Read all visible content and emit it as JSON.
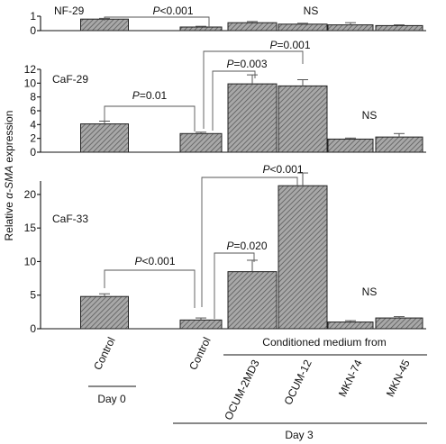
{
  "chart_data": {
    "type": "bar",
    "ylabel_parts": [
      "Relative ",
      "α-SMA",
      " expression"
    ],
    "panels": [
      {
        "title": "NF-29",
        "ylim": [
          0,
          1
        ],
        "yticks": [
          "0",
          "1"
        ],
        "series": [
          {
            "values": [
              0.8,
              0.25,
              0.55,
              0.45,
              0.4,
              0.35
            ],
            "errors": [
              0.05,
              0.05,
              0.08,
              0.06,
              0.15,
              0.05
            ]
          }
        ],
        "annotations": [
          {
            "text": "P<0.001",
            "type": "sig"
          },
          {
            "text": "NS",
            "type": "ns"
          }
        ]
      },
      {
        "title": "CaF-29",
        "ylim": [
          0,
          12
        ],
        "yticks": [
          "0",
          "2",
          "4",
          "6",
          "8",
          "10",
          "12"
        ],
        "series": [
          {
            "values": [
              4.1,
              2.7,
              9.9,
              9.6,
              1.9,
              2.2
            ],
            "errors": [
              0.4,
              0.2,
              1.3,
              0.9,
              0.15,
              0.5
            ]
          }
        ],
        "annotations": [
          {
            "text": "P=0.01",
            "type": "sig"
          },
          {
            "text": "P=0.003",
            "type": "sig"
          },
          {
            "text": "P=0.001",
            "type": "sig"
          },
          {
            "text": "NS",
            "type": "ns"
          }
        ]
      },
      {
        "title": "CaF-33",
        "ylim": [
          0,
          22
        ],
        "yticks": [
          "0",
          "5",
          "10",
          "15",
          "20"
        ],
        "series": [
          {
            "values": [
              4.8,
              1.3,
              8.5,
              21.3,
              1.0,
              1.6
            ],
            "errors": [
              0.4,
              0.3,
              1.7,
              1.9,
              0.2,
              0.2
            ]
          }
        ],
        "annotations": [
          {
            "text": "P<0.001",
            "type": "sig"
          },
          {
            "text": "P=0.020",
            "type": "sig"
          },
          {
            "text": "P<0.001",
            "type": "sig"
          },
          {
            "text": "NS",
            "type": "ns"
          }
        ]
      }
    ],
    "categories": [
      "Control",
      "Control",
      "OCUM-2MD3",
      "OCUM-12",
      "MKN-74",
      "MKN-45"
    ],
    "groups": [
      {
        "label": "Conditioned medium from"
      },
      {
        "label": "Day 0"
      },
      {
        "label": "Day 3"
      }
    ]
  },
  "colors": {
    "bar_fill": "#a8a8a8",
    "hatch": "#5a5a5a",
    "text": "#111111"
  }
}
